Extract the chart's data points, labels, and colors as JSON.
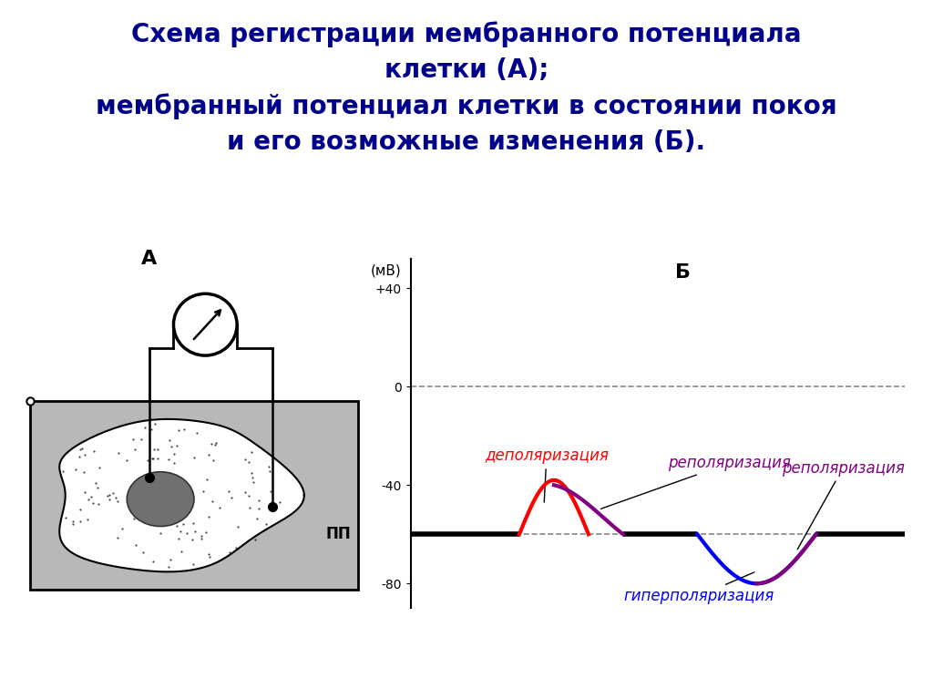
{
  "title_line1": "Схема регистрации мембранного потенциала",
  "title_line2": "клетки (А);",
  "title_line3": "мембранный потенциал клетки в состоянии покоя",
  "title_line4": "и его возможные изменения (Б).",
  "title_color": "#00008B",
  "title_fontsize": 20,
  "bg_color": "#FFFFFF",
  "label_A": "А",
  "label_B": "Б",
  "ylabel_mv": "(мВ)",
  "yticks": [
    40,
    0,
    -40,
    -80
  ],
  "ytick_labels": [
    "+40",
    "0",
    "-40",
    "-80"
  ],
  "pp_label": "ПП",
  "pp_value": -60,
  "depo_label": "деполяризация",
  "repol_label": "реполяризация",
  "hyper_label": "гиперполяризация",
  "depo_color": "#FF0000",
  "repol_color": "#800080",
  "hyper_color": "#0000FF",
  "baseline_color": "#000000",
  "dashed_color": "#555555",
  "cell_bg": "#B8B8B8",
  "nucleus_color": "#707070"
}
